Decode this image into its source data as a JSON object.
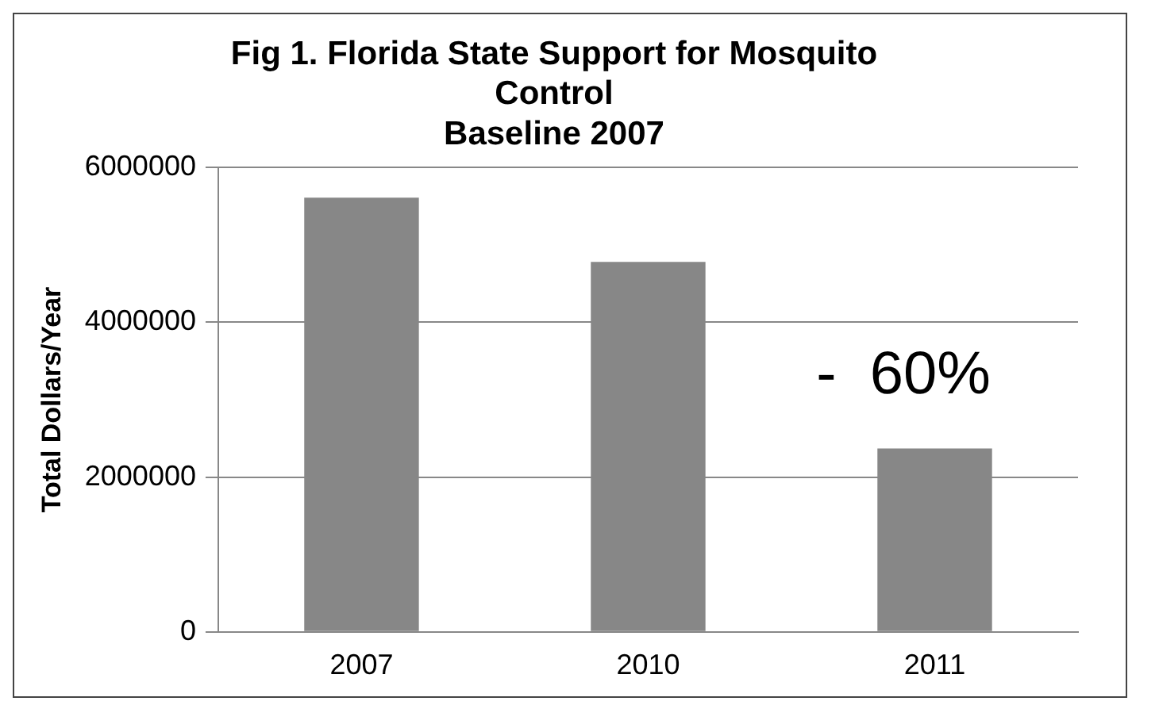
{
  "chart_data": {
    "type": "bar",
    "title": [
      "Fig 1. Florida State Support for Mosquito",
      "Control",
      "Baseline 2007"
    ],
    "ylabel": "Total Dollars/Year",
    "categories": [
      "2007",
      "2010",
      "2011"
    ],
    "values": [
      5610000,
      4780000,
      2370000
    ],
    "color": "#878787",
    "ylim": [
      0,
      6000000
    ],
    "yticks": [
      0,
      2000000,
      4000000,
      6000000
    ],
    "grid": "y",
    "legend": false,
    "annotations": [
      "-  60%"
    ]
  }
}
